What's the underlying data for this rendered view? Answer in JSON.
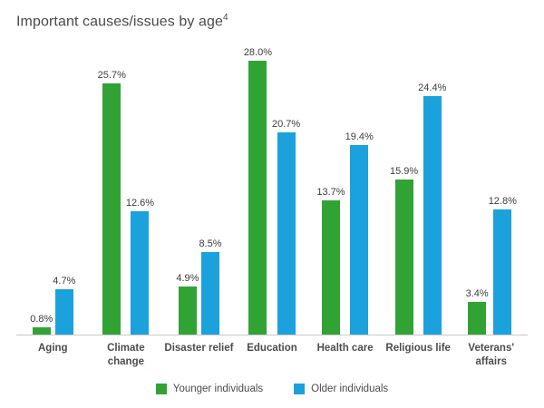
{
  "title": {
    "text": "Important causes/issues by age",
    "superscript": "4"
  },
  "chart_data": {
    "type": "bar",
    "title": "Important causes/issues by age",
    "categories": [
      "Aging",
      "Climate change",
      "Disaster relief",
      "Education",
      "Health care",
      "Religious life",
      "Veterans' affairs"
    ],
    "series": [
      {
        "name": "Younger individuals",
        "color": "#31a335",
        "values": [
          0.8,
          25.7,
          4.9,
          28.0,
          13.7,
          15.9,
          3.4
        ]
      },
      {
        "name": "Older individuals",
        "color": "#1ba2dc",
        "values": [
          4.7,
          12.6,
          8.5,
          20.7,
          19.4,
          24.4,
          12.8
        ]
      }
    ],
    "value_label_format": "percent_one_decimal",
    "ylim": [
      0,
      30
    ],
    "grid": false,
    "legend_position": "bottom",
    "axis_line_color": "#c9c9c9"
  }
}
